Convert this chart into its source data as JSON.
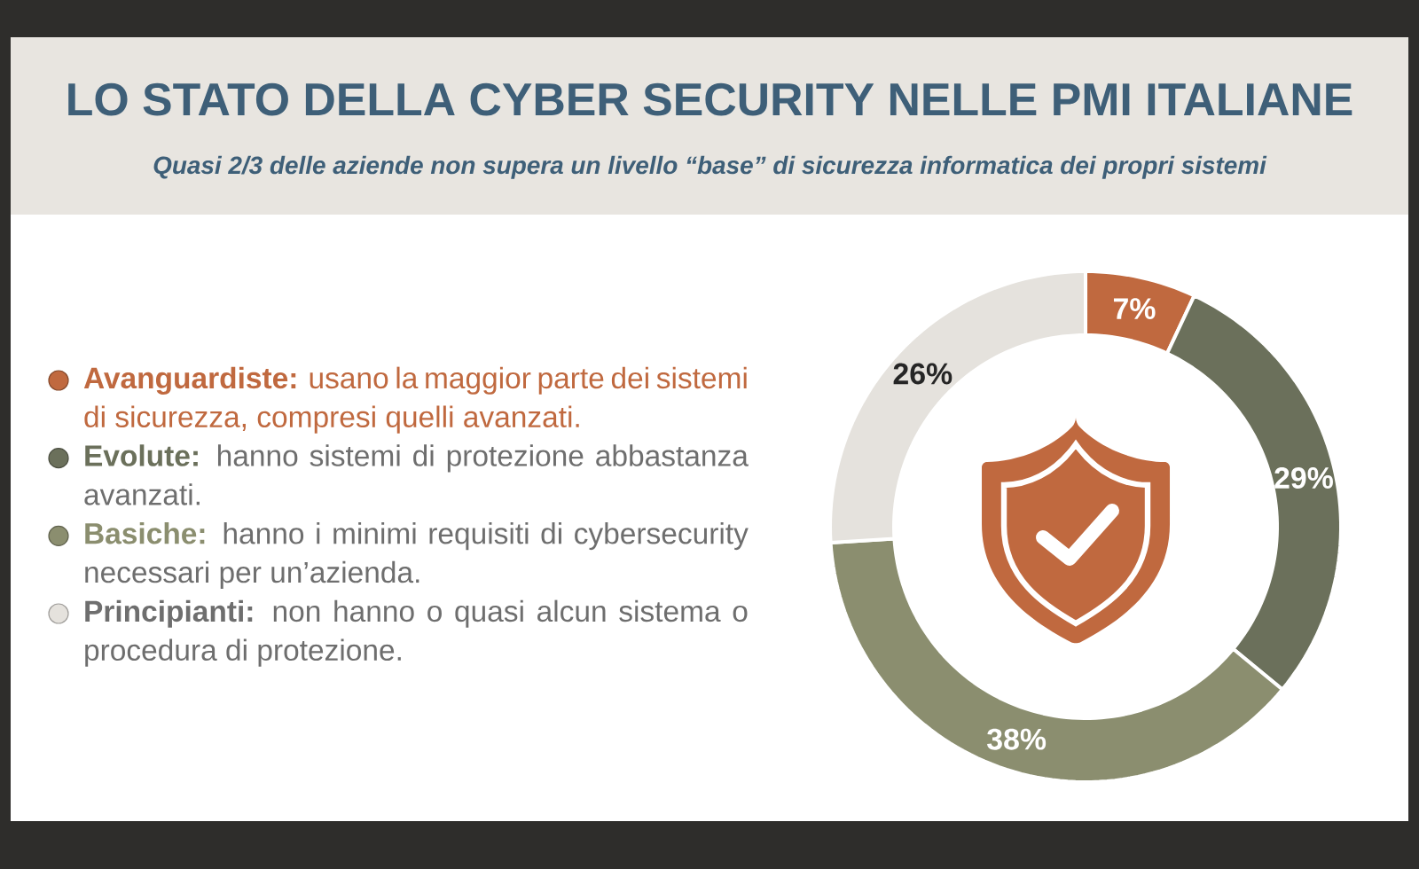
{
  "chart_data": {
    "type": "donut",
    "title": "LO STATO DELLA CYBER SECURITY NELLE PMI ITALIANE",
    "subtitle": "Quasi 2/3 delle aziende non supera un livello “base” di sicurezza informatica dei propri sistemi",
    "categories": [
      "**Avanguardiste:** usano la maggior parte dei sistemi di sicurezza, compresi quelli avanzati.",
      "**Evolute:** hanno sistemi di protezione abbastanza avanzati.",
      "**Basiche:** hanno i minimi requisiti di cybersecurity necessari per un’azienda.",
      "**Principianti:** non hanno o quasi alcun sistema o procedura di protezione."
    ],
    "values": [
      7,
      29,
      38,
      26
    ],
    "colors": [
      "#c0693f",
      "#6b705b",
      "#8b8e6f",
      "#e5e2dd"
    ],
    "value_labels": [
      "7%",
      "29%",
      "38%",
      "26%"
    ],
    "legend": "left"
  }
}
